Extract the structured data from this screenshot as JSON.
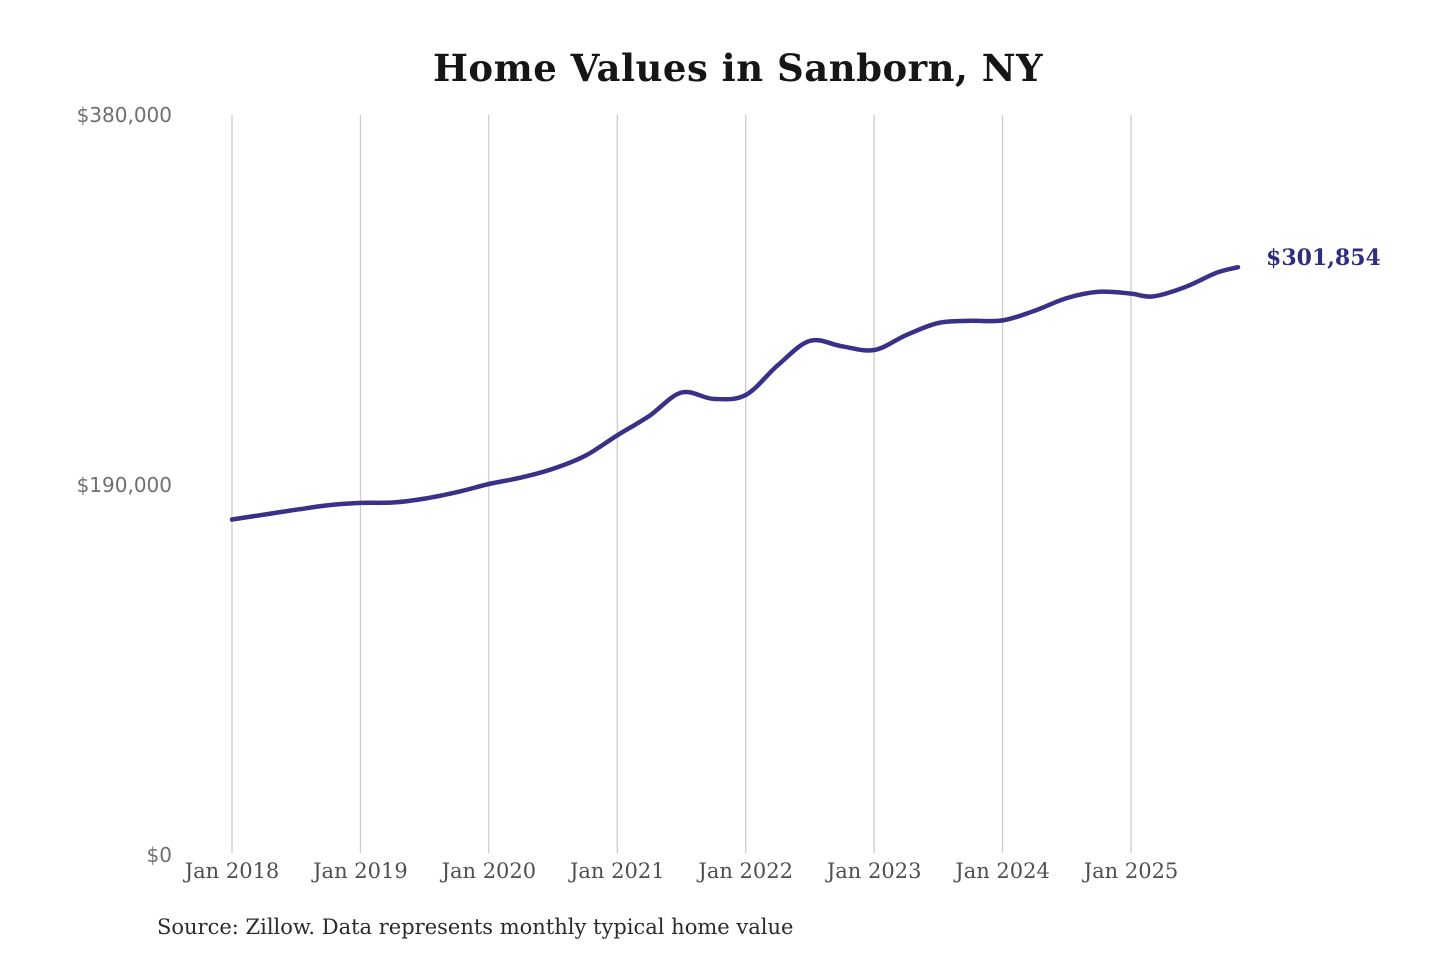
{
  "chart_data": {
    "type": "line",
    "title": "Home Values in Sanborn, NY",
    "xlabel": "",
    "ylabel": "",
    "ylim": [
      0,
      380000
    ],
    "grid": "vertical-yearly-gridlines",
    "gridline_color": "#c9c9c9",
    "line_color": "#393188",
    "background_color": "#ffffff",
    "legend": "none",
    "x_ticks": [
      "Jan 2018",
      "Jan 2019",
      "Jan 2020",
      "Jan 2021",
      "Jan 2022",
      "Jan 2023",
      "Jan 2024",
      "Jan 2025"
    ],
    "y_ticks": [
      {
        "label": "$380,000",
        "value": 380000
      },
      {
        "label": "$190,000",
        "value": 190000
      },
      {
        "label": "$0",
        "value": 0
      }
    ],
    "series": [
      {
        "name": "Typical home value",
        "points": [
          {
            "x": "2018-01",
            "y": 172300
          },
          {
            "x": "2018-04",
            "y": 174800
          },
          {
            "x": "2018-07",
            "y": 177300
          },
          {
            "x": "2018-10",
            "y": 179600
          },
          {
            "x": "2019-01",
            "y": 180800
          },
          {
            "x": "2019-04",
            "y": 181000
          },
          {
            "x": "2019-07",
            "y": 183000
          },
          {
            "x": "2019-10",
            "y": 186300
          },
          {
            "x": "2020-01",
            "y": 190500
          },
          {
            "x": "2020-04",
            "y": 193800
          },
          {
            "x": "2020-07",
            "y": 198300
          },
          {
            "x": "2020-10",
            "y": 205000
          },
          {
            "x": "2021-01",
            "y": 215500
          },
          {
            "x": "2021-04",
            "y": 225500
          },
          {
            "x": "2021-07",
            "y": 237500
          },
          {
            "x": "2021-10",
            "y": 234200
          },
          {
            "x": "2022-01",
            "y": 236200
          },
          {
            "x": "2022-04",
            "y": 251500
          },
          {
            "x": "2022-07",
            "y": 264000
          },
          {
            "x": "2022-10",
            "y": 261200
          },
          {
            "x": "2023-01",
            "y": 259300
          },
          {
            "x": "2023-04",
            "y": 267000
          },
          {
            "x": "2023-07",
            "y": 273200
          },
          {
            "x": "2023-10",
            "y": 274300
          },
          {
            "x": "2024-01",
            "y": 274500
          },
          {
            "x": "2024-04",
            "y": 279500
          },
          {
            "x": "2024-07",
            "y": 286000
          },
          {
            "x": "2024-10",
            "y": 289200
          },
          {
            "x": "2025-01",
            "y": 288300
          },
          {
            "x": "2025-03",
            "y": 286800
          },
          {
            "x": "2025-06",
            "y": 291500
          },
          {
            "x": "2025-09",
            "y": 299000
          },
          {
            "x": "2025-11",
            "y": 301854
          }
        ]
      }
    ],
    "end_label": "$301,854",
    "end_value": 301854,
    "source_note": "Source: Zillow. Data represents monthly typical home value"
  }
}
